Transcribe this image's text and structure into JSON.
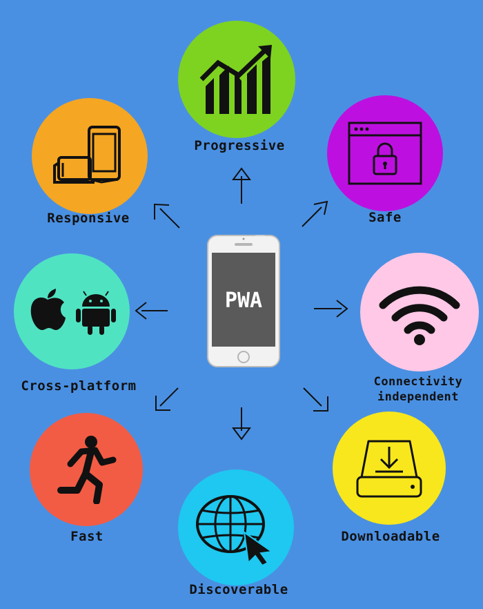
{
  "center": {
    "title": "PWA"
  },
  "features": {
    "progressive": {
      "label": "Progressive",
      "color": "#7ed321",
      "icon": "growth-chart-icon"
    },
    "safe": {
      "label": "Safe",
      "color": "#bd10e0",
      "icon": "browser-lock-icon"
    },
    "responsive": {
      "label": "Responsive",
      "color": "#f5a623",
      "icon": "devices-icon"
    },
    "cross_platform": {
      "label": "Cross-platform",
      "color": "#50e3c2",
      "icon": "apple-android-icon"
    },
    "connectivity": {
      "label_line1": "Connectivity",
      "label_line2": "independent",
      "color": "#ffc8e6",
      "icon": "wifi-icon"
    },
    "fast": {
      "label": "Fast",
      "color": "#f25c45",
      "icon": "runner-icon"
    },
    "discoverable": {
      "label": "Discoverable",
      "color": "#1ec8f0",
      "icon": "globe-cursor-icon"
    },
    "downloadable": {
      "label": "Downloadable",
      "color": "#f8e71c",
      "icon": "download-drive-icon"
    }
  }
}
